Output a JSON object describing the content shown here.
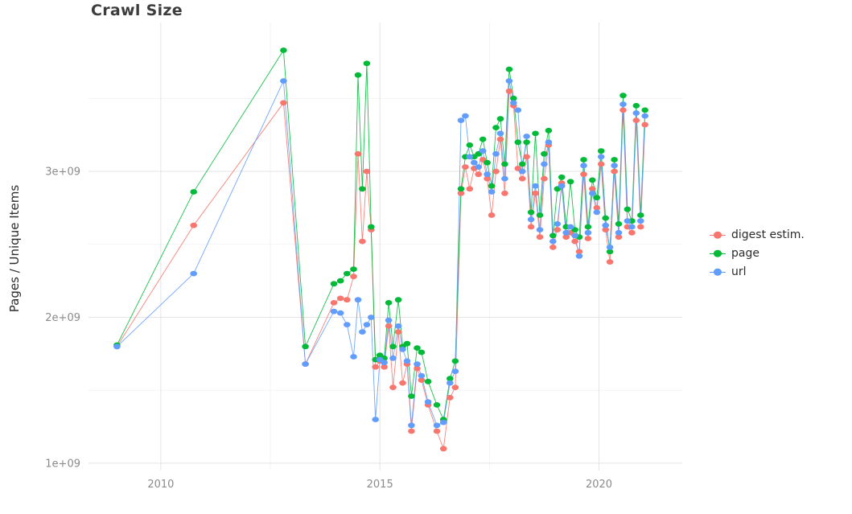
{
  "title": "Crawl Size",
  "chart_data": {
    "type": "line",
    "title": "Crawl Size",
    "xlabel": "",
    "ylabel": "Pages / Unique Items",
    "y_unit": "values given in billions (1e9) of pages / unique items",
    "x_unit": "decimal year",
    "grid": true,
    "legend_position": "right",
    "xlim": [
      2008.35,
      2021.9
    ],
    "ylim_billion": [
      0.95,
      4.02
    ],
    "x_ticks": [
      {
        "value": 2010,
        "label": "2010"
      },
      {
        "value": 2015,
        "label": "2015"
      },
      {
        "value": 2020,
        "label": "2020"
      }
    ],
    "y_ticks": [
      {
        "value": 1,
        "label": "1e+09"
      },
      {
        "value": 2,
        "label": "2e+09"
      },
      {
        "value": 3,
        "label": "3e+09"
      }
    ],
    "x_minor": [
      2012.5,
      2017.5
    ],
    "y_minor": [
      1.5,
      2.5,
      3.5
    ],
    "x": [
      2009.0,
      2010.75,
      2012.8,
      2013.3,
      2013.95,
      2014.1,
      2014.25,
      2014.4,
      2014.5,
      2014.6,
      2014.7,
      2014.8,
      2014.9,
      2015.0,
      2015.1,
      2015.2,
      2015.3,
      2015.42,
      2015.52,
      2015.62,
      2015.72,
      2015.85,
      2015.95,
      2016.1,
      2016.3,
      2016.45,
      2016.6,
      2016.72,
      2016.85,
      2016.95,
      2017.05,
      2017.15,
      2017.25,
      2017.35,
      2017.45,
      2017.55,
      2017.65,
      2017.75,
      2017.85,
      2017.95,
      2018.05,
      2018.15,
      2018.25,
      2018.35,
      2018.45,
      2018.55,
      2018.65,
      2018.75,
      2018.85,
      2018.95,
      2019.05,
      2019.15,
      2019.25,
      2019.35,
      2019.45,
      2019.55,
      2019.65,
      2019.75,
      2019.85,
      2019.95,
      2020.05,
      2020.15,
      2020.25,
      2020.35,
      2020.45,
      2020.55,
      2020.65,
      2020.75,
      2020.85,
      2020.95,
      2021.05
    ],
    "series": [
      {
        "name": "digest estim.",
        "color": "#F8766D",
        "values_billion": [
          1.8,
          2.63,
          3.47,
          1.68,
          2.1,
          2.13,
          2.12,
          2.28,
          3.12,
          2.52,
          3.0,
          2.6,
          1.66,
          1.7,
          1.66,
          1.94,
          1.52,
          1.9,
          1.55,
          1.68,
          1.22,
          1.65,
          1.57,
          1.4,
          1.22,
          1.1,
          1.45,
          1.52,
          2.85,
          3.03,
          2.88,
          3.02,
          2.98,
          3.08,
          2.95,
          2.7,
          3.0,
          3.22,
          2.85,
          3.55,
          3.45,
          3.02,
          2.95,
          3.1,
          2.62,
          2.85,
          2.55,
          2.95,
          3.18,
          2.48,
          2.6,
          2.92,
          2.55,
          2.58,
          2.52,
          2.45,
          2.98,
          2.54,
          2.88,
          2.75,
          3.05,
          2.6,
          2.38,
          3.0,
          2.55,
          3.42,
          2.62,
          2.58,
          3.35,
          2.62,
          3.32
        ]
      },
      {
        "name": "page",
        "color": "#00BA38",
        "values_billion": [
          1.81,
          2.86,
          3.83,
          1.8,
          2.23,
          2.25,
          2.3,
          2.33,
          3.66,
          2.88,
          3.74,
          2.62,
          1.71,
          1.74,
          1.72,
          2.1,
          1.8,
          2.12,
          1.8,
          1.82,
          1.46,
          1.79,
          1.76,
          1.56,
          1.4,
          1.3,
          1.58,
          1.7,
          2.88,
          3.1,
          3.18,
          3.1,
          3.12,
          3.22,
          3.06,
          2.9,
          3.3,
          3.36,
          3.05,
          3.7,
          3.5,
          3.2,
          3.05,
          3.2,
          2.72,
          3.26,
          2.7,
          3.12,
          3.28,
          2.56,
          2.88,
          2.96,
          2.62,
          2.93,
          2.6,
          2.55,
          3.08,
          2.62,
          2.94,
          2.82,
          3.14,
          2.68,
          2.45,
          3.08,
          2.64,
          3.52,
          2.74,
          2.66,
          3.45,
          2.7,
          3.42
        ]
      },
      {
        "name": "url",
        "color": "#619CFF",
        "values_billion": [
          1.8,
          2.3,
          3.62,
          1.68,
          2.04,
          2.03,
          1.95,
          1.73,
          2.12,
          1.9,
          1.95,
          2.0,
          1.3,
          1.71,
          1.69,
          1.98,
          1.72,
          1.94,
          1.78,
          1.7,
          1.26,
          1.68,
          1.6,
          1.42,
          1.26,
          1.28,
          1.55,
          1.63,
          3.35,
          3.38,
          3.1,
          3.06,
          3.03,
          3.14,
          2.98,
          2.86,
          3.12,
          3.26,
          2.95,
          3.62,
          3.47,
          3.42,
          3.0,
          3.24,
          2.67,
          2.9,
          2.6,
          3.05,
          3.2,
          2.52,
          2.64,
          2.9,
          2.58,
          2.62,
          2.56,
          2.42,
          3.04,
          2.58,
          2.85,
          2.72,
          3.1,
          2.63,
          2.48,
          3.04,
          2.58,
          3.46,
          2.66,
          2.62,
          3.4,
          2.66,
          3.38
        ]
      }
    ],
    "style": {
      "grid_major_color": "#e4e4e4",
      "grid_minor_color": "#f1f1f1",
      "tick_label_color": "#8a8a8a",
      "background": "#ffffff"
    }
  }
}
